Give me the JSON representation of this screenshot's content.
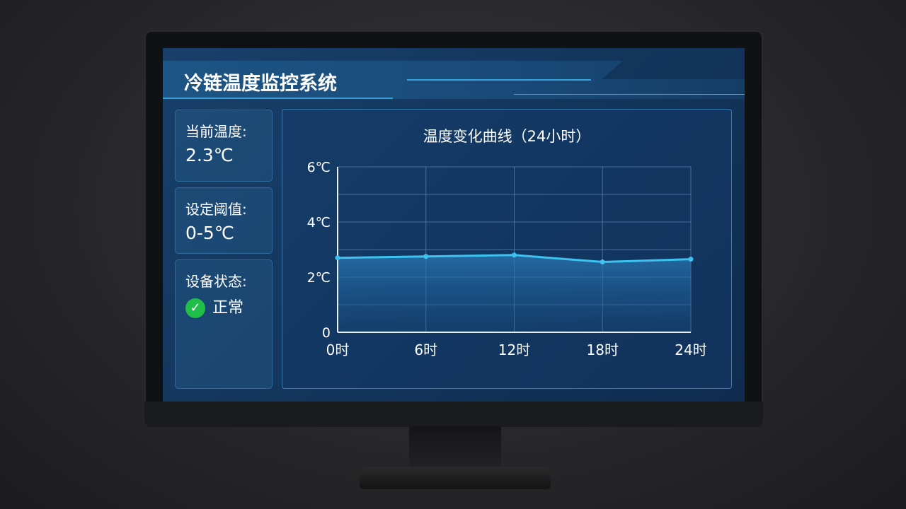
{
  "header": {
    "title": "冷链温度监控系统"
  },
  "cards": [
    {
      "label": "当前温度:",
      "value": "2.3℃"
    },
    {
      "label": "设定阈值:",
      "value": "0-5℃"
    },
    {
      "label": "设备状态:",
      "value": "正常",
      "icon": "check-circle-icon",
      "icon_color": "#1fbf4a"
    }
  ],
  "chart_data": {
    "type": "area",
    "title": "温度变化曲线（24小时）",
    "categories": [
      "0时",
      "6时",
      "12时",
      "18时",
      "24时"
    ],
    "values": [
      2.7,
      2.75,
      2.8,
      2.55,
      2.65
    ],
    "yticks": [
      "0",
      "2℃",
      "4℃",
      "6℃"
    ],
    "ylim": [
      0,
      6
    ],
    "grid": true,
    "line_color": "#3ec3f0"
  }
}
